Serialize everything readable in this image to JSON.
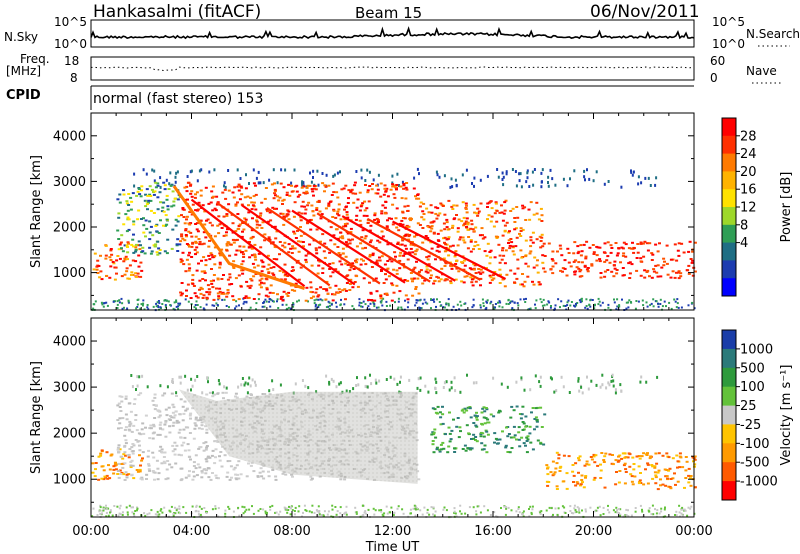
{
  "header": {
    "station": "Hankasalmi (fitACF)",
    "beam": "Beam 15",
    "date": "06/Nov/2011"
  },
  "noise_panel": {
    "left_label": "N.Sky",
    "left_ticks": [
      "10^5",
      "10^0"
    ],
    "right_label": "N.Search",
    "right_ticks": [
      "10^5",
      "10^0"
    ]
  },
  "freq_panel": {
    "left_label_line1": "Freq.",
    "left_label_line2": "[MHz]",
    "left_ticks": [
      "18",
      "8"
    ],
    "right_label": "Nave",
    "right_ticks": [
      "60",
      "0"
    ]
  },
  "cpid_panel": {
    "label": "CPID",
    "mode": "normal (fast stereo) 153"
  },
  "chart_data": [
    {
      "type": "heatmap",
      "name": "power",
      "ylabel": "Slant Range [km]",
      "yticks": [
        "4000",
        "3000",
        "2000",
        "1000"
      ],
      "ylim": [
        180,
        4500
      ],
      "xlim": [
        0,
        24
      ],
      "colorbar": {
        "label": "Power [dB]",
        "ticks": [
          "28",
          "24",
          "20",
          "16",
          "12",
          "8",
          "4"
        ],
        "colors": [
          "#ff0000",
          "#ff3000",
          "#ff7a00",
          "#ffb300",
          "#ffe200",
          "#9ed82a",
          "#2f9e55",
          "#1f6e84",
          "#1c3cb0",
          "#0000ff"
        ]
      },
      "echo_bands": [
        {
          "x0": 0.0,
          "x1": 2.0,
          "y0": 850,
          "y1": 1700,
          "level": "red-orange"
        },
        {
          "x0": 1.0,
          "x1": 3.5,
          "y0": 1400,
          "y1": 3000,
          "level": "green-blue"
        },
        {
          "x0": 3.5,
          "x1": 13.0,
          "y0": 400,
          "y1": 3000,
          "level": "red diagonal streaks"
        },
        {
          "x0": 13.0,
          "x1": 18.0,
          "y0": 700,
          "y1": 2600,
          "level": "red-orange"
        },
        {
          "x0": 18.0,
          "x1": 24.0,
          "y0": 900,
          "y1": 1700,
          "level": "red"
        }
      ]
    },
    {
      "type": "heatmap",
      "name": "velocity",
      "xlabel": "Time UT",
      "ylabel": "Slant Range [km]",
      "yticks": [
        "4000",
        "3000",
        "2000",
        "1000"
      ],
      "ylim": [
        180,
        4500
      ],
      "xticks": [
        "00:00",
        "04:00",
        "08:00",
        "12:00",
        "16:00",
        "20:00",
        "00:00"
      ],
      "xlim": [
        0,
        24
      ],
      "colorbar": {
        "label": "Velocity [m s⁻¹]",
        "ticks": [
          "1000",
          "500",
          "100",
          "25",
          "-25",
          "-100",
          "-500",
          "-1000"
        ],
        "colors": [
          "#1a3da8",
          "#2b7a7a",
          "#2e9a3c",
          "#63c23a",
          "#c8c8c8",
          "#ffc400",
          "#ff9a00",
          "#ff5a00",
          "#ff0000"
        ]
      },
      "echo_bands": [
        {
          "x0": 0.0,
          "x1": 2.0,
          "y0": 1000,
          "y1": 1700,
          "level": "orange"
        },
        {
          "x0": 1.0,
          "x1": 13.0,
          "y0": 1000,
          "y1": 2900,
          "level": "grey (ground scatter)"
        },
        {
          "x0": 13.5,
          "x1": 18.0,
          "y0": 1600,
          "y1": 2600,
          "level": "green"
        },
        {
          "x0": 18.0,
          "x1": 24.0,
          "y0": 800,
          "y1": 1600,
          "level": "orange"
        }
      ]
    }
  ]
}
